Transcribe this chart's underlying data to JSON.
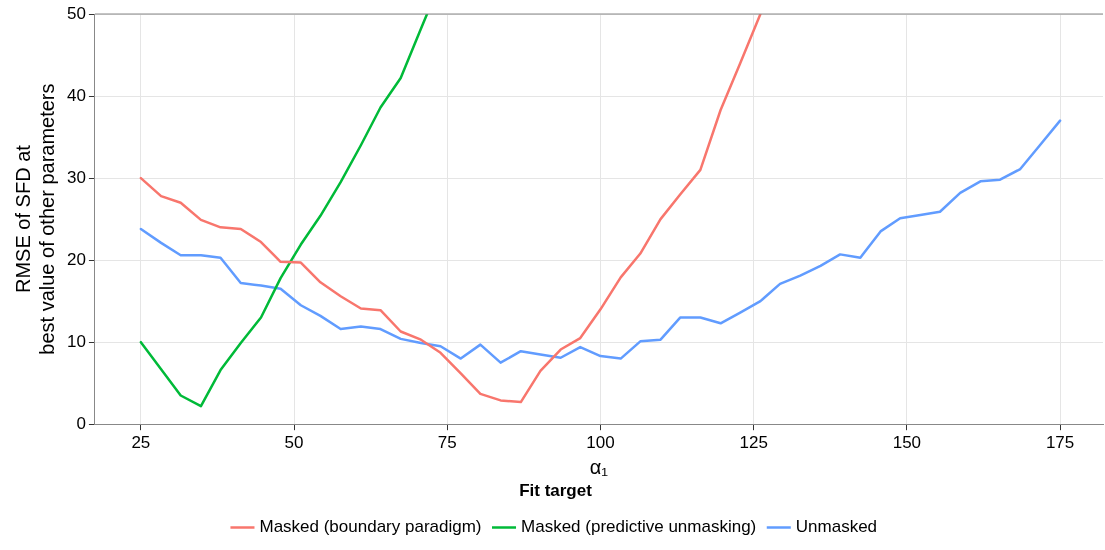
{
  "chart_data": {
    "type": "line",
    "xlabel": "α₁",
    "ylabel": "RMSE of SFD at\nbest value of other parameters",
    "legend_title": "Fit target",
    "legend": "bottom",
    "grid": true,
    "marker": "none",
    "line_style": "solid",
    "xlim": [
      17.5,
      182
    ],
    "xticks": [
      25,
      50,
      75,
      100,
      125,
      150,
      175
    ],
    "ylim": [
      0,
      50
    ],
    "yticks": [
      0,
      10,
      20,
      30,
      40,
      50
    ],
    "series": [
      {
        "name": "Masked (boundary paradigm)",
        "color": "#f8766d",
        "x": [
          25,
          28.3,
          31.5,
          34.8,
          38.0,
          41.3,
          44.6,
          47.8,
          51.1,
          54.3,
          57.6,
          60.9,
          64.1,
          67.4,
          70.7,
          73.9,
          77.2,
          80.4,
          83.7,
          87.0,
          90.2,
          93.5,
          96.7,
          100.0,
          103.3,
          106.5,
          109.8,
          113.0,
          116.3,
          119.6,
          122.8,
          126.1
        ],
        "values": [
          30,
          27.8,
          27.0,
          24.9,
          24.0,
          23.8,
          22.2,
          19.8,
          19.7,
          17.3,
          15.6,
          14.1,
          13.9,
          11.3,
          10.3,
          8.7,
          6.2,
          3.7,
          2.9,
          2.7,
          6.5,
          9.1,
          10.5,
          14.0,
          17.9,
          20.8,
          25.0,
          28.0,
          31.0,
          38.3,
          44.0,
          50
        ]
      },
      {
        "name": "Masked (predictive unmasking)",
        "color": "#00ba38",
        "x": [
          25,
          28.3,
          31.5,
          34.8,
          38.0,
          41.3,
          44.6,
          47.8,
          51.1,
          54.3,
          57.6,
          60.9,
          64.1,
          67.4,
          70.7,
          71.7
        ],
        "values": [
          10,
          6.7,
          3.5,
          2.2,
          6.6,
          9.9,
          13.0,
          17.8,
          21.9,
          25.4,
          29.5,
          34.0,
          38.6,
          42.2,
          48.2,
          50
        ]
      },
      {
        "name": "Unmasked",
        "color": "#619cff",
        "x": [
          25,
          28.3,
          31.5,
          34.8,
          38.0,
          41.3,
          44.6,
          47.8,
          51.1,
          54.3,
          57.6,
          60.9,
          64.1,
          67.4,
          70.7,
          73.9,
          77.2,
          80.4,
          83.7,
          87.0,
          90.2,
          93.5,
          96.7,
          100.0,
          103.3,
          106.5,
          109.8,
          113.0,
          116.3,
          119.6,
          122.8,
          126.1,
          129.3,
          132.6,
          135.9,
          139.1,
          142.4,
          145.7,
          148.9,
          152.2,
          155.4,
          158.7,
          162.0,
          165.2,
          168.5,
          171.7,
          175.0
        ],
        "values": [
          23.8,
          22.1,
          20.6,
          20.6,
          20.3,
          17.2,
          16.9,
          16.5,
          14.5,
          13.2,
          11.6,
          11.9,
          11.6,
          10.4,
          9.9,
          9.5,
          8.0,
          9.7,
          7.5,
          8.9,
          8.5,
          8.1,
          9.4,
          8.3,
          8.0,
          10.1,
          10.3,
          13.0,
          13.0,
          12.3,
          13.6,
          15.0,
          17.1,
          18.1,
          19.3,
          20.7,
          20.3,
          23.5,
          25.1,
          25.5,
          25.9,
          28.2,
          29.6,
          29.8,
          31.1,
          34.0,
          37.0
        ]
      }
    ]
  }
}
